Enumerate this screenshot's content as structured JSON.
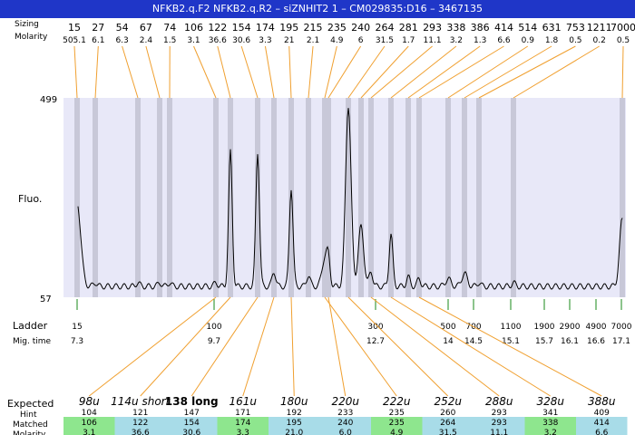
{
  "title": "NFKB2.q.F2  NFKB2.q.R2 – siZNHIT2 1 – CM029835:D16 – 3467135",
  "header_labels": {
    "sizing": "Sizing",
    "molarity": "Molarity"
  },
  "axis": {
    "fluo_label": "Fluo.",
    "y_top": "499",
    "y_bottom": "57",
    "ylim": [
      57,
      499
    ]
  },
  "ladder_labels": {
    "ladder": "Ladder",
    "mig_time": "Mig. time"
  },
  "table_labels": {
    "expected": "Expected",
    "hint": "Hint",
    "matched": "Matched",
    "molarity": "Molarity"
  },
  "colors": {
    "title_bg": "#1f36c8",
    "plot_bg": "#e8e8f8",
    "band": "#c8c8d8",
    "connector": "#f0a030",
    "ladder_tick": "#1a8a1a",
    "cell_green": "#8ee68e",
    "cell_blue": "#a8dce8"
  },
  "chart_data": {
    "type": "line",
    "xlabel": "",
    "ylabel": "Fluo.",
    "ylim": [
      57,
      499
    ],
    "peaks": [
      {
        "size": "15",
        "molarity": "505.1"
      },
      {
        "size": "27",
        "molarity": "6.1"
      },
      {
        "size": "54",
        "molarity": "6.3"
      },
      {
        "size": "67",
        "molarity": "2.4"
      },
      {
        "size": "74",
        "molarity": "1.5"
      },
      {
        "size": "106",
        "molarity": "3.1"
      },
      {
        "size": "122",
        "molarity": "36.6"
      },
      {
        "size": "154",
        "molarity": "30.6"
      },
      {
        "size": "174",
        "molarity": "3.3"
      },
      {
        "size": "195",
        "molarity": "21"
      },
      {
        "size": "215",
        "molarity": "2.1"
      },
      {
        "size": "235",
        "molarity": "4.9"
      },
      {
        "size": "240",
        "molarity": "6"
      },
      {
        "size": "264",
        "molarity": "31.5"
      },
      {
        "size": "281",
        "molarity": "1.7"
      },
      {
        "size": "293",
        "molarity": "11.1"
      },
      {
        "size": "338",
        "molarity": "3.2"
      },
      {
        "size": "386",
        "molarity": "1.3"
      },
      {
        "size": "414",
        "molarity": "6.6"
      },
      {
        "size": "514",
        "molarity": "0.9"
      },
      {
        "size": "631",
        "molarity": "1.8"
      },
      {
        "size": "753",
        "molarity": "0.5"
      },
      {
        "size": "1211",
        "molarity": "0.2"
      },
      {
        "size": "7000",
        "molarity": "0.5"
      }
    ],
    "ladder": [
      {
        "size": "15",
        "time": "7.3"
      },
      {
        "size": "100",
        "time": "9.7"
      },
      {
        "size": "300",
        "time": "12.7"
      },
      {
        "size": "500",
        "time": "14"
      },
      {
        "size": "700",
        "time": "14.5"
      },
      {
        "size": "1100",
        "time": "15.1"
      },
      {
        "size": "1900",
        "time": "15.7"
      },
      {
        "size": "2900",
        "time": "16.1"
      },
      {
        "size": "4900",
        "time": "16.6"
      },
      {
        "size": "7000",
        "time": "17.1"
      }
    ],
    "expected": [
      {
        "label": "98u",
        "hint": "104",
        "matched": "106",
        "molarity": "3.1",
        "color": "green"
      },
      {
        "label": "114u short",
        "hint": "121",
        "matched": "122",
        "molarity": "36.6",
        "color": "blue"
      },
      {
        "label": "138 long",
        "hint": "147",
        "matched": "154",
        "molarity": "30.6",
        "color": "blue"
      },
      {
        "label": "161u",
        "hint": "171",
        "matched": "174",
        "molarity": "3.3",
        "color": "green"
      },
      {
        "label": "180u",
        "hint": "192",
        "matched": "195",
        "molarity": "21.0",
        "color": "blue"
      },
      {
        "label": "220u",
        "hint": "233",
        "matched": "240",
        "molarity": "6.0",
        "color": "blue"
      },
      {
        "label": "222u",
        "hint": "235",
        "matched": "235",
        "molarity": "4.9",
        "color": "green"
      },
      {
        "label": "252u",
        "hint": "260",
        "matched": "264",
        "molarity": "31.5",
        "color": "blue"
      },
      {
        "label": "288u",
        "hint": "293",
        "matched": "293",
        "molarity": "11.1",
        "color": "blue"
      },
      {
        "label": "328u",
        "hint": "341",
        "matched": "338",
        "molarity": "3.2",
        "color": "green"
      },
      {
        "label": "388u",
        "hint": "409",
        "matched": "414",
        "molarity": "6.6",
        "color": "blue"
      }
    ]
  }
}
